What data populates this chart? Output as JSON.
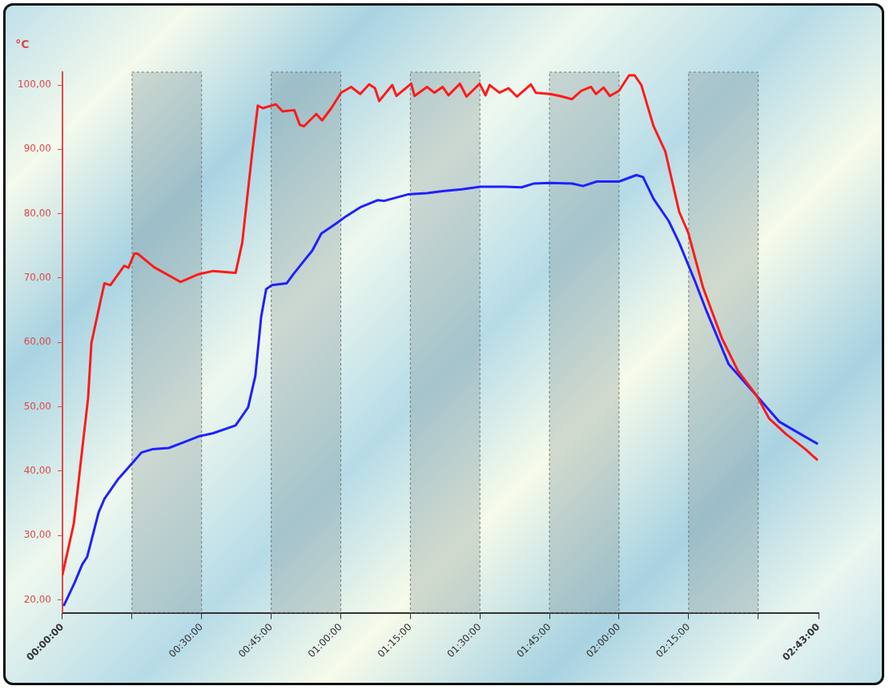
{
  "chart_data": {
    "type": "line",
    "ylabel": "°C",
    "xlim": [
      0,
      2.7167
    ],
    "xticks": [
      {
        "value": 0,
        "label": "00:00:00"
      },
      {
        "value": 0.25,
        "label": null
      },
      {
        "value": 0.5,
        "label": "00:30:00"
      },
      {
        "value": 0.75,
        "label": "00:45:00"
      },
      {
        "value": 1,
        "label": "01:00:00"
      },
      {
        "value": 1.25,
        "label": "01:15:00"
      },
      {
        "value": 1.5,
        "label": "01:30:00"
      },
      {
        "value": 1.75,
        "label": "01:45:00"
      },
      {
        "value": 2,
        "label": "02:00:00"
      },
      {
        "value": 2.25,
        "label": "02:15:00"
      },
      {
        "value": 2.5,
        "label": null
      },
      {
        "value": 2.7167,
        "label": "02:43:00"
      }
    ],
    "ylim": [
      18,
      102
    ],
    "yticks": [
      {
        "value": 20,
        "label": "20,00"
      },
      {
        "value": 30,
        "label": "30,00"
      },
      {
        "value": 40,
        "label": "40,00"
      },
      {
        "value": 50,
        "label": "50,00"
      },
      {
        "value": 60,
        "label": "60,00"
      },
      {
        "value": 70,
        "label": "70,00"
      },
      {
        "value": 80,
        "label": "80,00"
      },
      {
        "value": 90,
        "label": "90,00"
      },
      {
        "value": 100,
        "label": "100,00"
      }
    ],
    "grid": false,
    "legend": false,
    "bands": [
      {
        "axis": "x",
        "from": 0.25,
        "to": 0.5,
        "color": "#7f8f8f"
      },
      {
        "axis": "x",
        "from": 0.75,
        "to": 1,
        "color": "#7f8f8f"
      },
      {
        "axis": "x",
        "from": 1.25,
        "to": 1.5,
        "color": "#7f8f8f"
      },
      {
        "axis": "x",
        "from": 1.75,
        "to": 2,
        "color": "#7f8f8f"
      },
      {
        "axis": "x",
        "from": 2.25,
        "to": 2.5,
        "color": "#7f8f8f"
      }
    ],
    "series": [
      {
        "color": "#ff1a1a",
        "x": [
          0,
          0.041,
          0.071,
          0.092,
          0.104,
          0.139,
          0.151,
          0.172,
          0.222,
          0.237,
          0.258,
          0.27,
          0.329,
          0.424,
          0.489,
          0.542,
          0.622,
          0.646,
          0.681,
          0.702,
          0.72,
          0.767,
          0.791,
          0.833,
          0.853,
          0.868,
          0.912,
          0.933,
          0.966,
          1.001,
          1.037,
          1.07,
          1.102,
          1.123,
          1.138,
          1.185,
          1.2,
          1.253,
          1.265,
          1.31,
          1.336,
          1.366,
          1.387,
          1.428,
          1.452,
          1.499,
          1.52,
          1.535,
          1.57,
          1.603,
          1.633,
          1.683,
          1.701,
          1.751,
          1.787,
          1.831,
          1.864,
          1.899,
          1.917,
          1.944,
          1.967,
          2.0,
          2.036,
          2.056,
          2.08,
          2.104,
          2.124,
          2.166,
          2.216,
          2.249,
          2.302,
          2.37,
          2.427,
          2.495,
          2.539,
          2.599,
          2.67,
          2.711
        ],
        "values": [
          23.9,
          31.9,
          43.4,
          51.3,
          59.9,
          66.9,
          69.2,
          68.9,
          71.9,
          71.6,
          73.8,
          73.8,
          71.7,
          69.4,
          70.6,
          71.1,
          70.8,
          75.5,
          89.2,
          96.8,
          96.4,
          97.0,
          95.9,
          96.1,
          93.8,
          93.6,
          95.5,
          94.5,
          96.4,
          98.8,
          99.7,
          98.6,
          100.1,
          99.5,
          97.5,
          100.0,
          98.3,
          100.2,
          98.3,
          99.7,
          98.8,
          99.7,
          98.4,
          100.2,
          98.2,
          100.2,
          98.4,
          100.0,
          98.8,
          99.5,
          98.2,
          100.1,
          98.8,
          98.6,
          98.3,
          97.8,
          99.1,
          99.7,
          98.6,
          99.6,
          98.3,
          99.1,
          101.5,
          101.5,
          100.0,
          96.5,
          93.6,
          89.7,
          80.3,
          77.0,
          68.5,
          60.6,
          55.6,
          51.7,
          48.2,
          45.8,
          43.4,
          41.8
        ]
      },
      {
        "color": "#2020ff",
        "x": [
          0.006,
          0.044,
          0.071,
          0.089,
          0.13,
          0.151,
          0.199,
          0.252,
          0.284,
          0.323,
          0.382,
          0.436,
          0.489,
          0.542,
          0.622,
          0.667,
          0.693,
          0.714,
          0.732,
          0.753,
          0.806,
          0.833,
          0.859,
          0.898,
          0.93,
          0.984,
          1.019,
          1.07,
          1.132,
          1.156,
          1.241,
          1.31,
          1.366,
          1.434,
          1.502,
          1.591,
          1.65,
          1.695,
          1.751,
          1.831,
          1.87,
          1.92,
          2.0,
          2.062,
          2.086,
          2.124,
          2.178,
          2.216,
          2.273,
          2.314,
          2.394,
          2.495,
          2.575,
          2.631,
          2.711
        ],
        "values": [
          19.2,
          22.7,
          25.5,
          26.7,
          33.6,
          35.7,
          38.7,
          41.3,
          42.9,
          43.4,
          43.6,
          44.5,
          45.4,
          45.9,
          47.1,
          49.9,
          54.8,
          64.0,
          68.3,
          68.9,
          69.2,
          70.8,
          72.2,
          74.3,
          76.9,
          78.5,
          79.6,
          81.0,
          82.1,
          82.0,
          83.0,
          83.2,
          83.5,
          83.8,
          84.2,
          84.2,
          84.1,
          84.7,
          84.8,
          84.7,
          84.3,
          85.0,
          85.0,
          86.0,
          85.7,
          82.3,
          78.9,
          75.5,
          69.5,
          64.9,
          56.6,
          51.7,
          47.7,
          46.3,
          44.3
        ]
      }
    ]
  }
}
